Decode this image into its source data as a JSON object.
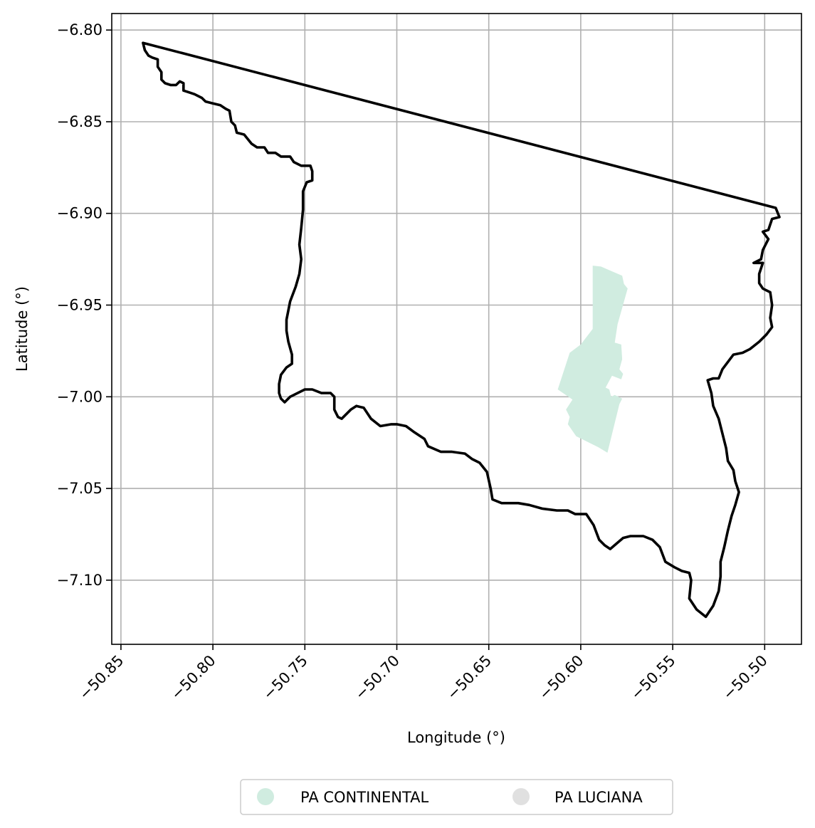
{
  "chart_data": {
    "type": "map",
    "xlabel": "Longitude (°)",
    "ylabel": "Latitude (°)",
    "xlim": [
      -50.855,
      -50.48
    ],
    "ylim": [
      -7.135,
      -6.791
    ],
    "grid": true,
    "x_ticks": [
      {
        "value": -50.85,
        "label": "−50.85"
      },
      {
        "value": -50.8,
        "label": "−50.80"
      },
      {
        "value": -50.75,
        "label": "−50.75"
      },
      {
        "value": -50.7,
        "label": "−50.70"
      },
      {
        "value": -50.65,
        "label": "−50.65"
      },
      {
        "value": -50.6,
        "label": "−50.60"
      },
      {
        "value": -50.55,
        "label": "−50.55"
      },
      {
        "value": -50.5,
        "label": "−50.50"
      }
    ],
    "y_ticks": [
      {
        "value": -6.8,
        "label": "−6.80"
      },
      {
        "value": -6.85,
        "label": "−6.85"
      },
      {
        "value": -6.9,
        "label": "−6.90"
      },
      {
        "value": -6.95,
        "label": "−6.95"
      },
      {
        "value": -7.0,
        "label": "−7.00"
      },
      {
        "value": -7.05,
        "label": "−7.05"
      },
      {
        "value": -7.1,
        "label": "−7.10"
      }
    ],
    "boundary": {
      "stroke": "#000000",
      "points": [
        [
          -50.838,
          -6.807
        ],
        [
          -50.494,
          -6.897
        ],
        [
          -50.492,
          -6.902
        ],
        [
          -50.496,
          -6.903
        ],
        [
          -50.498,
          -6.909
        ],
        [
          -50.501,
          -6.91
        ],
        [
          -50.498,
          -6.914
        ],
        [
          -50.501,
          -6.92
        ],
        [
          -50.502,
          -6.925
        ],
        [
          -50.506,
          -6.927
        ],
        [
          -50.501,
          -6.927
        ],
        [
          -50.503,
          -6.933
        ],
        [
          -50.503,
          -6.938
        ],
        [
          -50.501,
          -6.941
        ],
        [
          -50.497,
          -6.943
        ],
        [
          -50.496,
          -6.95
        ],
        [
          -50.497,
          -6.957
        ],
        [
          -50.496,
          -6.962
        ],
        [
          -50.499,
          -6.966
        ],
        [
          -50.503,
          -6.97
        ],
        [
          -50.508,
          -6.974
        ],
        [
          -50.512,
          -6.976
        ],
        [
          -50.517,
          -6.977
        ],
        [
          -50.52,
          -6.981
        ],
        [
          -50.523,
          -6.985
        ],
        [
          -50.525,
          -6.99
        ],
        [
          -50.528,
          -6.99
        ],
        [
          -50.531,
          -6.991
        ],
        [
          -50.529,
          -6.998
        ],
        [
          -50.528,
          -7.005
        ],
        [
          -50.525,
          -7.012
        ],
        [
          -50.523,
          -7.02
        ],
        [
          -50.521,
          -7.028
        ],
        [
          -50.52,
          -7.035
        ],
        [
          -50.517,
          -7.04
        ],
        [
          -50.516,
          -7.046
        ],
        [
          -50.514,
          -7.052
        ],
        [
          -50.516,
          -7.059
        ],
        [
          -50.518,
          -7.065
        ],
        [
          -50.52,
          -7.073
        ],
        [
          -50.522,
          -7.082
        ],
        [
          -50.524,
          -7.09
        ],
        [
          -50.524,
          -7.098
        ],
        [
          -50.525,
          -7.106
        ],
        [
          -50.528,
          -7.114
        ],
        [
          -50.532,
          -7.12
        ],
        [
          -50.537,
          -7.116
        ],
        [
          -50.541,
          -7.11
        ],
        [
          -50.54,
          -7.1
        ],
        [
          -50.541,
          -7.096
        ],
        [
          -50.545,
          -7.095
        ],
        [
          -50.549,
          -7.093
        ],
        [
          -50.554,
          -7.09
        ],
        [
          -50.557,
          -7.082
        ],
        [
          -50.561,
          -7.078
        ],
        [
          -50.566,
          -7.076
        ],
        [
          -50.573,
          -7.076
        ],
        [
          -50.577,
          -7.077
        ],
        [
          -50.584,
          -7.083
        ],
        [
          -50.587,
          -7.081
        ],
        [
          -50.59,
          -7.078
        ],
        [
          -50.593,
          -7.07
        ],
        [
          -50.597,
          -7.064
        ],
        [
          -50.603,
          -7.064
        ],
        [
          -50.607,
          -7.062
        ],
        [
          -50.613,
          -7.062
        ],
        [
          -50.621,
          -7.061
        ],
        [
          -50.628,
          -7.059
        ],
        [
          -50.634,
          -7.058
        ],
        [
          -50.643,
          -7.058
        ],
        [
          -50.648,
          -7.056
        ],
        [
          -50.649,
          -7.05
        ],
        [
          -50.651,
          -7.041
        ],
        [
          -50.655,
          -7.036
        ],
        [
          -50.659,
          -7.034
        ],
        [
          -50.663,
          -7.031
        ],
        [
          -50.67,
          -7.03
        ],
        [
          -50.676,
          -7.03
        ],
        [
          -50.683,
          -7.027
        ],
        [
          -50.685,
          -7.023
        ],
        [
          -50.691,
          -7.019
        ],
        [
          -50.695,
          -7.016
        ],
        [
          -50.7,
          -7.015
        ],
        [
          -50.703,
          -7.015
        ],
        [
          -50.709,
          -7.016
        ],
        [
          -50.714,
          -7.012
        ],
        [
          -50.718,
          -7.006
        ],
        [
          -50.722,
          -7.005
        ],
        [
          -50.725,
          -7.007
        ],
        [
          -50.73,
          -7.012
        ],
        [
          -50.732,
          -7.011
        ],
        [
          -50.734,
          -7.007
        ],
        [
          -50.734,
          -7.0
        ],
        [
          -50.736,
          -6.998
        ],
        [
          -50.741,
          -6.998
        ],
        [
          -50.746,
          -6.996
        ],
        [
          -50.75,
          -6.996
        ],
        [
          -50.758,
          -7.0
        ],
        [
          -50.761,
          -7.003
        ],
        [
          -50.763,
          -7.001
        ],
        [
          -50.764,
          -6.998
        ],
        [
          -50.764,
          -6.993
        ],
        [
          -50.763,
          -6.988
        ],
        [
          -50.76,
          -6.984
        ],
        [
          -50.757,
          -6.982
        ],
        [
          -50.757,
          -6.977
        ],
        [
          -50.759,
          -6.97
        ],
        [
          -50.76,
          -6.964
        ],
        [
          -50.76,
          -6.958
        ],
        [
          -50.758,
          -6.948
        ],
        [
          -50.755,
          -6.94
        ],
        [
          -50.753,
          -6.933
        ],
        [
          -50.752,
          -6.925
        ],
        [
          -50.753,
          -6.917
        ],
        [
          -50.752,
          -6.908
        ],
        [
          -50.751,
          -6.898
        ],
        [
          -50.751,
          -6.888
        ],
        [
          -50.749,
          -6.883
        ],
        [
          -50.746,
          -6.882
        ],
        [
          -50.746,
          -6.877
        ],
        [
          -50.747,
          -6.874
        ],
        [
          -50.752,
          -6.874
        ],
        [
          -50.756,
          -6.872
        ],
        [
          -50.758,
          -6.869
        ],
        [
          -50.763,
          -6.869
        ],
        [
          -50.766,
          -6.867
        ],
        [
          -50.77,
          -6.867
        ],
        [
          -50.772,
          -6.864
        ],
        [
          -50.776,
          -6.864
        ],
        [
          -50.779,
          -6.862
        ],
        [
          -50.783,
          -6.857
        ],
        [
          -50.787,
          -6.856
        ],
        [
          -50.788,
          -6.852
        ],
        [
          -50.79,
          -6.85
        ],
        [
          -50.791,
          -6.844
        ],
        [
          -50.793,
          -6.843
        ],
        [
          -50.796,
          -6.841
        ],
        [
          -50.8,
          -6.84
        ],
        [
          -50.804,
          -6.839
        ],
        [
          -50.806,
          -6.837
        ],
        [
          -50.81,
          -6.835
        ],
        [
          -50.813,
          -6.834
        ],
        [
          -50.816,
          -6.833
        ],
        [
          -50.816,
          -6.829
        ],
        [
          -50.818,
          -6.828
        ],
        [
          -50.82,
          -6.83
        ],
        [
          -50.823,
          -6.83
        ],
        [
          -50.826,
          -6.829
        ],
        [
          -50.828,
          -6.827
        ],
        [
          -50.828,
          -6.823
        ],
        [
          -50.83,
          -6.82
        ],
        [
          -50.83,
          -6.816
        ],
        [
          -50.833,
          -6.815
        ],
        [
          -50.835,
          -6.814
        ],
        [
          -50.837,
          -6.811
        ],
        [
          -50.838,
          -6.807
        ]
      ]
    },
    "areas": [
      {
        "name": "PA CONTINENTAL",
        "color": "#d0ece0",
        "points": [
          [
            -50.5935,
            -6.9285
          ],
          [
            -50.589,
            -6.929
          ],
          [
            -50.5775,
            -6.934
          ],
          [
            -50.5765,
            -6.9385
          ],
          [
            -50.5745,
            -6.941
          ],
          [
            -50.58,
            -6.9605
          ],
          [
            -50.5815,
            -6.9705
          ],
          [
            -50.578,
            -6.9715
          ],
          [
            -50.5775,
            -6.9795
          ],
          [
            -50.579,
            -6.985
          ],
          [
            -50.577,
            -6.9875
          ],
          [
            -50.578,
            -6.9905
          ],
          [
            -50.583,
            -6.9885
          ],
          [
            -50.5865,
            -6.995
          ],
          [
            -50.5845,
            -6.996
          ],
          [
            -50.5835,
            -7.0
          ],
          [
            -50.5815,
            -6.999
          ],
          [
            -50.5775,
            -7.001
          ],
          [
            -50.579,
            -7.004
          ],
          [
            -50.5855,
            -7.0305
          ],
          [
            -50.5905,
            -7.0275
          ],
          [
            -50.6025,
            -7.0215
          ],
          [
            -50.607,
            -7.015
          ],
          [
            -50.606,
            -7.011
          ],
          [
            -50.608,
            -7.007
          ],
          [
            -50.6045,
            -7.0015
          ],
          [
            -50.6125,
            -6.996
          ],
          [
            -50.606,
            -6.976
          ],
          [
            -50.6,
            -6.9715
          ],
          [
            -50.5935,
            -6.963
          ]
        ]
      }
    ],
    "legend": {
      "placement": "bottom-center",
      "entries": [
        {
          "label": "PA CONTINENTAL",
          "color": "#d0ece0"
        },
        {
          "label": "PA LUCIANA",
          "color": "#e0e0e0"
        }
      ]
    }
  }
}
